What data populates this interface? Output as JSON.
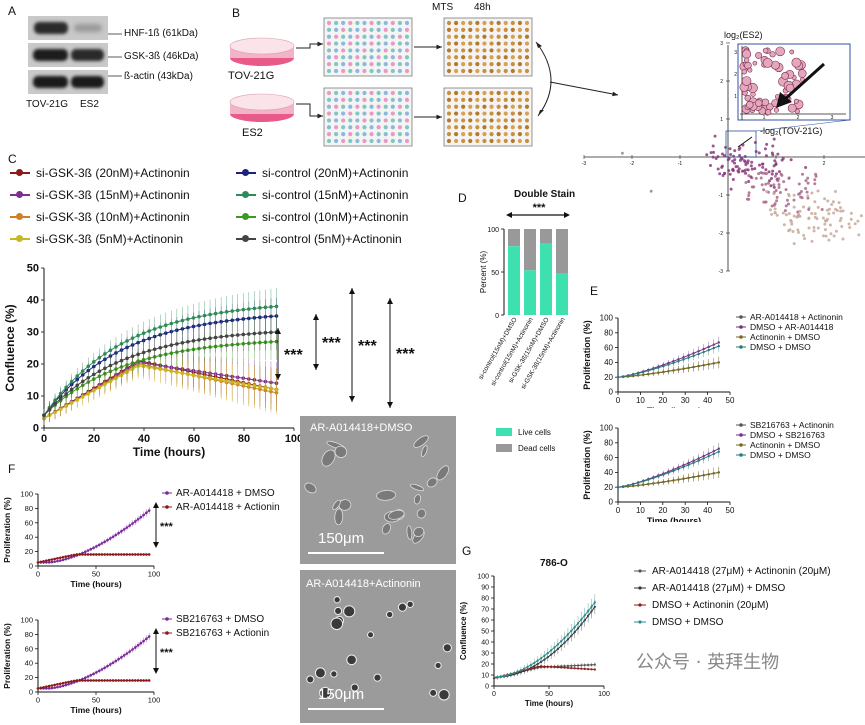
{
  "panels": {
    "A": {
      "letter": "A",
      "bands": [
        "HNF-1ß (61kDa)",
        "GSK-3ß (46kDa)",
        "ß-actin (43kDa)"
      ],
      "lanes": [
        "TOV-21G",
        "ES2"
      ]
    },
    "B": {
      "letter": "B",
      "mts": "MTS",
      "time": "48h",
      "dish_labels": [
        "TOV-21G",
        "ES2"
      ],
      "volcano_inset_ylabel": "log₂(ES2)",
      "volcano_inset_xlabel": "-log₂(TOV-21G)",
      "x_ticks": [
        "-3",
        "-2",
        "-1",
        "1",
        "2",
        "3"
      ],
      "y_ticks": [
        "3",
        "2",
        "1",
        "-1",
        "-2",
        "-3"
      ],
      "inset_y_ticks": [
        "3",
        "2",
        "1"
      ],
      "inset_x_ticks": [
        "1",
        "2",
        "3"
      ]
    },
    "C": {
      "letter": "C",
      "legend": [
        {
          "label": "si-GSK-3ß (20nM)+Actinonin",
          "color": "#8b1a1a"
        },
        {
          "label": "si-GSK-3ß (15nM)+Actinonin",
          "color": "#7b2f8f"
        },
        {
          "label": "si-GSK-3ß (10nM)+Actinonin",
          "color": "#d08020"
        },
        {
          "label": "si-GSK-3ß (5nM)+Actinonin",
          "color": "#c8b820"
        },
        {
          "label": "si-control (20nM)+Actinonin",
          "color": "#1a237e"
        },
        {
          "label": "si-control (15nM)+Actinonin",
          "color": "#2e8b57"
        },
        {
          "label": "si-control (10nM)+Actinonin",
          "color": "#3a9a20"
        },
        {
          "label": "si-control (5nM)+Actinonin",
          "color": "#444444"
        }
      ],
      "ylabel": "Confluence (%)",
      "xlabel": "Time (hours)",
      "y_ticks": [
        "0",
        "10",
        "20",
        "30",
        "40",
        "50"
      ],
      "x_ticks": [
        "0",
        "20",
        "40",
        "60",
        "80",
        "100"
      ],
      "sig": "***"
    },
    "D": {
      "letter": "D",
      "title": "Double Stain",
      "sig": "***",
      "ylabel": "Percent (%)",
      "y_ticks": [
        "0",
        "50",
        "100"
      ],
      "categories": [
        "si-control(15nM)+DMSO",
        "si-control(15nM)+Actinonin",
        "si-GSK-3ß(15nM)+DMSO",
        "si-GSK-3ß(15nM)+Actinonin"
      ],
      "live": [
        80,
        52,
        83,
        48
      ],
      "legend": [
        "Live cells",
        "Dead cells"
      ],
      "colors": {
        "live": "#3fe0b0",
        "dead": "#999999"
      }
    },
    "E": {
      "letter": "E",
      "top_legend": [
        "AR-A014418 + Actinonin",
        "DMSO + AR-A014418",
        "Actinonin + DMSO",
        "DMSO + DMSO"
      ],
      "bottom_legend": [
        "SB216763 + Actinonin",
        "DMSO + SB216763",
        "Actinonin + DMSO",
        "DMSO + DMSO"
      ],
      "ylabel": "Proliferation (%)",
      "xlabel": "Time (hours)",
      "y_ticks": [
        "0",
        "20",
        "40",
        "60",
        "80",
        "100"
      ],
      "x_ticks": [
        "0",
        "10",
        "20",
        "30",
        "40",
        "50"
      ]
    },
    "F": {
      "letter": "F",
      "top_legend": [
        "AR-A014418 + DMSO",
        "AR-A014418 + Actionin"
      ],
      "bottom_legend": [
        "SB216763 + DMSO",
        "SB216763 + Actionin"
      ],
      "ylabel": "Proliferation (%)",
      "xlabel": "Time (hours)",
      "y_ticks": [
        "0",
        "20",
        "40",
        "60",
        "80",
        "100"
      ],
      "x_ticks": [
        "0",
        "50",
        "100"
      ],
      "sig": "***",
      "micro_top": "AR-A014418+DMSO",
      "micro_bottom": "AR-A014418+Actinonin",
      "scale": "150μm"
    },
    "G": {
      "letter": "G",
      "title": "786-O",
      "legend": [
        "AR-A014418  (27μM) + Actinonin (20μM)",
        "AR-A014418  (27μM) + DMSO",
        "DMSO + Actinonin (20μM)",
        "DMSO + DMSO"
      ],
      "ylabel": "Confluence (%)",
      "xlabel": "Time (hours)",
      "y_ticks": [
        "0",
        "10",
        "20",
        "30",
        "40",
        "50",
        "60",
        "70",
        "80",
        "90",
        "100"
      ],
      "x_ticks": [
        "0",
        "50",
        "100"
      ]
    }
  },
  "watermark": "公众号 · 英拜生物"
}
